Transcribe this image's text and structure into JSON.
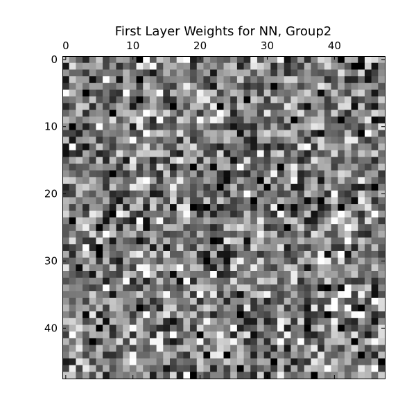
{
  "chart_data": {
    "type": "heatmap",
    "title": "First Layer Weights for NN, Group2",
    "xlabel": "",
    "ylabel": "",
    "colormap": "gray",
    "rows": 48,
    "cols": 48,
    "x_axis_position": "top",
    "x_ticks": [
      0,
      10,
      20,
      30,
      40
    ],
    "x_tick_labels": [
      "0",
      "10",
      "20",
      "30",
      "40"
    ],
    "y_ticks": [
      0,
      10,
      20,
      30,
      40
    ],
    "y_tick_labels": [
      "0",
      "10",
      "20",
      "30",
      "40"
    ],
    "xlim": [
      0,
      48
    ],
    "ylim": [
      48,
      0
    ],
    "grid": false,
    "value_range": [
      0,
      1
    ],
    "notable_cells": [
      {
        "row": 0,
        "col": 32,
        "value": 0.98
      },
      {
        "row": 1,
        "col": 28,
        "value": 0.9
      },
      {
        "row": 2,
        "col": 45,
        "value": 0.1
      },
      {
        "row": 3,
        "col": 45,
        "value": 0.06
      },
      {
        "row": 7,
        "col": 36,
        "value": 0.05
      },
      {
        "row": 10,
        "col": 11,
        "value": 0.9
      },
      {
        "row": 10,
        "col": 37,
        "value": 0.9
      },
      {
        "row": 11,
        "col": 38,
        "value": 0.04
      },
      {
        "row": 15,
        "col": 25,
        "value": 0.05
      },
      {
        "row": 17,
        "col": 24,
        "value": 0.05
      },
      {
        "row": 22,
        "col": 16,
        "value": 0.06
      },
      {
        "row": 22,
        "col": 34,
        "value": 0.04
      },
      {
        "row": 24,
        "col": 12,
        "value": 0.06
      },
      {
        "row": 25,
        "col": 12,
        "value": 0.05
      },
      {
        "row": 28,
        "col": 15,
        "value": 0.06
      },
      {
        "row": 30,
        "col": 24,
        "value": 0.05
      },
      {
        "row": 33,
        "col": 17,
        "value": 0.05
      },
      {
        "row": 35,
        "col": 7,
        "value": 0.08
      },
      {
        "row": 35,
        "col": 22,
        "value": 0.92
      },
      {
        "row": 35,
        "col": 26,
        "value": 0.05
      },
      {
        "row": 39,
        "col": 6,
        "value": 0.05
      },
      {
        "row": 39,
        "col": 16,
        "value": 0.05
      },
      {
        "row": 42,
        "col": 13,
        "value": 0.97
      },
      {
        "row": 42,
        "col": 14,
        "value": 0.96
      }
    ]
  }
}
